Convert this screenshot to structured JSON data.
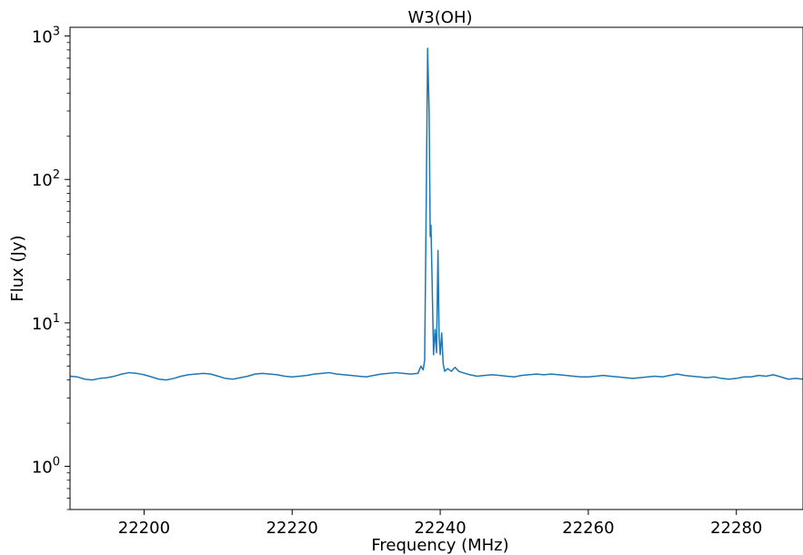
{
  "chart_data": {
    "type": "line",
    "title": "W3(OH)",
    "xlabel": "Frequency (MHz)",
    "ylabel": "Flux (Jy)",
    "xlim": [
      22190,
      22289
    ],
    "ylim": [
      0.5,
      1150
    ],
    "yscale": "log",
    "grid": false,
    "xticks": [
      22200,
      22220,
      22240,
      22260,
      22280
    ],
    "xtick_labels": [
      "22200",
      "22220",
      "22240",
      "22260",
      "22280"
    ],
    "yticks": [
      {
        "value": 1,
        "base": "10",
        "exp": "0"
      },
      {
        "value": 10,
        "base": "10",
        "exp": "1"
      },
      {
        "value": 100,
        "base": "10",
        "exp": "2"
      },
      {
        "value": 1000,
        "base": "10",
        "exp": "3"
      }
    ],
    "series": [
      {
        "color": "#1f77b4",
        "points": [
          [
            22190.0,
            4.25
          ],
          [
            22191.0,
            4.2
          ],
          [
            22192.0,
            4.05
          ],
          [
            22193.0,
            4.0
          ],
          [
            22194.0,
            4.1
          ],
          [
            22195.0,
            4.15
          ],
          [
            22196.0,
            4.25
          ],
          [
            22197.0,
            4.4
          ],
          [
            22198.0,
            4.5
          ],
          [
            22199.0,
            4.45
          ],
          [
            22200.0,
            4.35
          ],
          [
            22201.0,
            4.2
          ],
          [
            22202.0,
            4.05
          ],
          [
            22203.0,
            4.0
          ],
          [
            22204.0,
            4.1
          ],
          [
            22205.0,
            4.25
          ],
          [
            22206.0,
            4.35
          ],
          [
            22207.0,
            4.4
          ],
          [
            22208.0,
            4.45
          ],
          [
            22209.0,
            4.4
          ],
          [
            22210.0,
            4.25
          ],
          [
            22211.0,
            4.1
          ],
          [
            22212.0,
            4.05
          ],
          [
            22213.0,
            4.15
          ],
          [
            22214.0,
            4.25
          ],
          [
            22215.0,
            4.4
          ],
          [
            22216.0,
            4.45
          ],
          [
            22217.0,
            4.4
          ],
          [
            22218.0,
            4.35
          ],
          [
            22219.0,
            4.25
          ],
          [
            22220.0,
            4.2
          ],
          [
            22221.0,
            4.25
          ],
          [
            22222.0,
            4.3
          ],
          [
            22223.0,
            4.4
          ],
          [
            22224.0,
            4.45
          ],
          [
            22225.0,
            4.5
          ],
          [
            22226.0,
            4.4
          ],
          [
            22227.0,
            4.35
          ],
          [
            22228.0,
            4.3
          ],
          [
            22229.0,
            4.25
          ],
          [
            22230.0,
            4.2
          ],
          [
            22231.0,
            4.3
          ],
          [
            22232.0,
            4.4
          ],
          [
            22233.0,
            4.45
          ],
          [
            22234.0,
            4.5
          ],
          [
            22235.0,
            4.45
          ],
          [
            22236.0,
            4.4
          ],
          [
            22237.0,
            4.45
          ],
          [
            22237.4,
            5.0
          ],
          [
            22237.7,
            4.7
          ],
          [
            22237.9,
            5.5
          ],
          [
            22238.1,
            60.0
          ],
          [
            22238.3,
            820.0
          ],
          [
            22238.5,
            300.0
          ],
          [
            22238.65,
            40.0
          ],
          [
            22238.75,
            48.0
          ],
          [
            22238.9,
            20.0
          ],
          [
            22239.1,
            6.0
          ],
          [
            22239.3,
            9.0
          ],
          [
            22239.5,
            6.2
          ],
          [
            22239.7,
            32.0
          ],
          [
            22239.85,
            8.0
          ],
          [
            22240.0,
            6.0
          ],
          [
            22240.2,
            8.5
          ],
          [
            22240.4,
            5.2
          ],
          [
            22240.6,
            4.6
          ],
          [
            22241.0,
            4.8
          ],
          [
            22241.5,
            4.6
          ],
          [
            22242.0,
            4.9
          ],
          [
            22242.5,
            4.6
          ],
          [
            22243.0,
            4.5
          ],
          [
            22244.0,
            4.35
          ],
          [
            22245.0,
            4.25
          ],
          [
            22246.0,
            4.3
          ],
          [
            22247.0,
            4.35
          ],
          [
            22248.0,
            4.3
          ],
          [
            22249.0,
            4.25
          ],
          [
            22250.0,
            4.2
          ],
          [
            22251.0,
            4.3
          ],
          [
            22252.0,
            4.35
          ],
          [
            22253.0,
            4.4
          ],
          [
            22254.0,
            4.35
          ],
          [
            22255.0,
            4.4
          ],
          [
            22256.0,
            4.35
          ],
          [
            22257.0,
            4.3
          ],
          [
            22258.0,
            4.25
          ],
          [
            22259.0,
            4.2
          ],
          [
            22260.0,
            4.2
          ],
          [
            22261.0,
            4.25
          ],
          [
            22262.0,
            4.3
          ],
          [
            22263.0,
            4.25
          ],
          [
            22264.0,
            4.2
          ],
          [
            22265.0,
            4.15
          ],
          [
            22266.0,
            4.1
          ],
          [
            22267.0,
            4.15
          ],
          [
            22268.0,
            4.2
          ],
          [
            22269.0,
            4.25
          ],
          [
            22270.0,
            4.2
          ],
          [
            22271.0,
            4.3
          ],
          [
            22272.0,
            4.4
          ],
          [
            22273.0,
            4.3
          ],
          [
            22274.0,
            4.25
          ],
          [
            22275.0,
            4.2
          ],
          [
            22276.0,
            4.15
          ],
          [
            22277.0,
            4.2
          ],
          [
            22278.0,
            4.1
          ],
          [
            22279.0,
            4.05
          ],
          [
            22280.0,
            4.1
          ],
          [
            22281.0,
            4.2
          ],
          [
            22282.0,
            4.2
          ],
          [
            22283.0,
            4.3
          ],
          [
            22284.0,
            4.25
          ],
          [
            22285.0,
            4.35
          ],
          [
            22286.0,
            4.2
          ],
          [
            22287.0,
            4.05
          ],
          [
            22288.0,
            4.1
          ],
          [
            22289.0,
            4.05
          ]
        ]
      }
    ]
  }
}
